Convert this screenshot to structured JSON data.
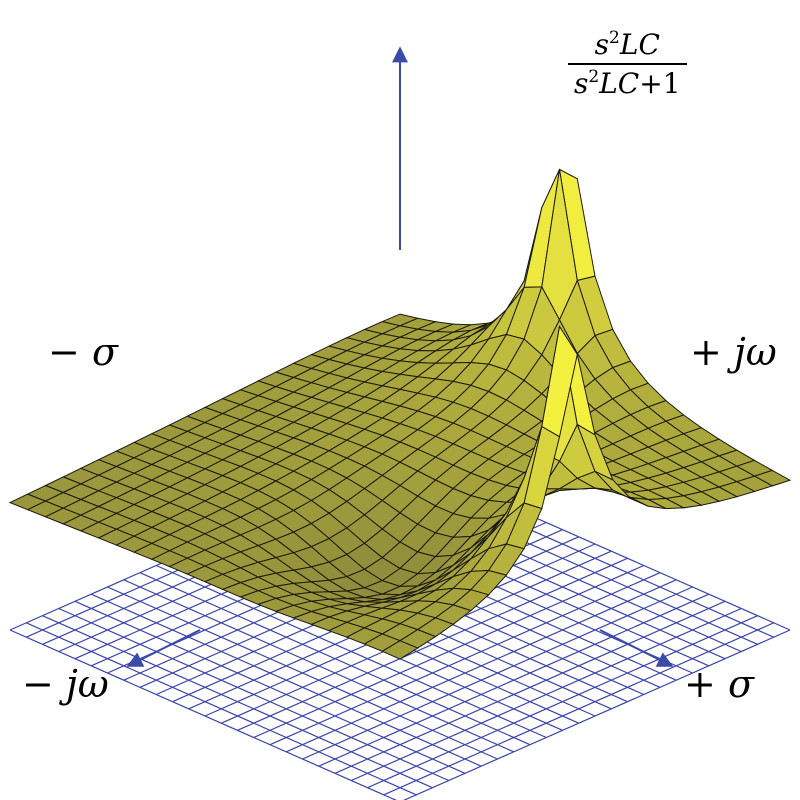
{
  "formula": {
    "numerator_base": "s",
    "numerator_exp": "2",
    "numerator_rest": "LC",
    "denominator_base": "s",
    "denominator_exp": "2",
    "denominator_rest": "LC",
    "denominator_tail": "+1"
  },
  "labels": {
    "neg_sigma_sign": "−",
    "neg_sigma_sym": "σ",
    "pos_jw_sign": "+",
    "pos_jw_sym": "jω",
    "neg_jw_sign": "−",
    "neg_jw_sym": "jω",
    "pos_sigma_sign": "+",
    "pos_sigma_sym": "σ"
  },
  "colors": {
    "grid": "#3a45a8",
    "axis_arrow": "#3a4aa8",
    "surface_low": "#8d8a3c",
    "surface_high": "#f4f040",
    "mesh_line": "#1a1a10"
  }
}
